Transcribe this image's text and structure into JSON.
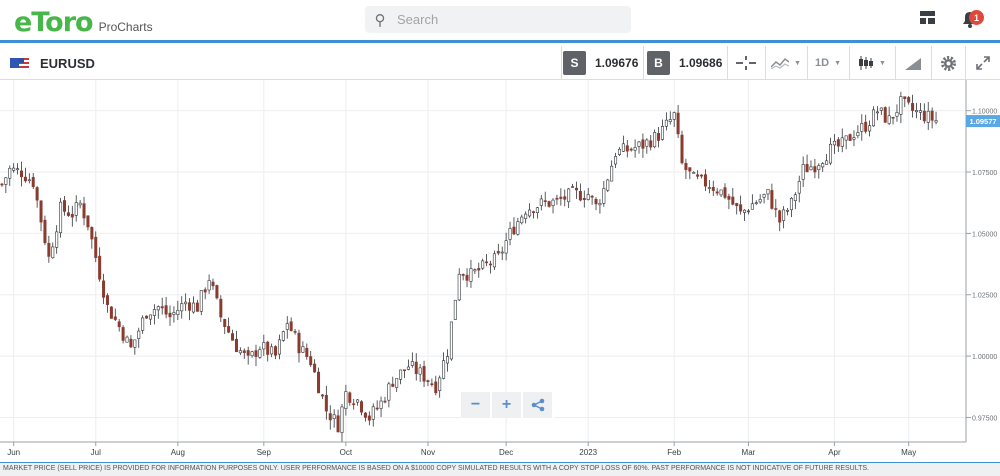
{
  "header": {
    "logo_text": "eToro",
    "logo_sub": "ProCharts",
    "search_placeholder": "Search",
    "notification_count": "1"
  },
  "toolbar": {
    "symbol": "EURUSD",
    "sell_label": "S",
    "sell_price": "1.09676",
    "buy_label": "B",
    "buy_price": "1.09686",
    "timeframe": "1D"
  },
  "colors": {
    "accent": "#3f8fd8",
    "brand": "#48b749",
    "candle": "#2f3437",
    "candle_down": "#8a3b2e",
    "price_tag": "#5aa7e6"
  },
  "zoom": {
    "minus": "−",
    "plus": "+"
  },
  "footer": {
    "disclaimer": "MARKET PRICE (SELL PRICE) IS PROVIDED FOR INFORMATION PURPOSES ONLY. USER PERFORMANCE IS BASED ON A $10000 COPY SIMULATED RESULTS WITH A COPY STOP LOSS OF 60%. PAST PERFORMANCE IS NOT INDICATIVE OF FUTURE RESULTS."
  },
  "chart_data": {
    "type": "candlestick",
    "title": "",
    "xlabel": "",
    "ylabel": "",
    "ylim": [
      0.965,
      1.1125
    ],
    "y_ticks": [
      "1.10000",
      "1.07500",
      "1.05000",
      "1.02500",
      "1.00000",
      "0.97500"
    ],
    "y_tick_values": [
      1.1,
      1.075,
      1.05,
      1.025,
      1.0,
      0.975
    ],
    "x_ticks": [
      "Jun",
      "Jul",
      "Aug",
      "Sep",
      "Oct",
      "Nov",
      "Dec",
      "2023",
      "Feb",
      "Mar",
      "Apr",
      "May"
    ],
    "x_tick_positions": [
      3,
      24,
      45,
      67,
      88,
      109,
      129,
      150,
      172,
      191,
      213,
      232
    ],
    "last_price": "1.09577",
    "last_price_value": 1.09577,
    "grid": true,
    "candle_count": 240,
    "close_series": [
      [
        0,
        1.07
      ],
      [
        2,
        1.076
      ],
      [
        5,
        1.075
      ],
      [
        8,
        1.071
      ],
      [
        12,
        1.04
      ],
      [
        15,
        1.06
      ],
      [
        18,
        1.058
      ],
      [
        20,
        1.062
      ],
      [
        22,
        1.054
      ],
      [
        27,
        1.02
      ],
      [
        30,
        1.012
      ],
      [
        33,
        1.003
      ],
      [
        37,
        1.018
      ],
      [
        40,
        1.02
      ],
      [
        43,
        1.016
      ],
      [
        47,
        1.022
      ],
      [
        50,
        1.02
      ],
      [
        53,
        1.032
      ],
      [
        56,
        1.016
      ],
      [
        60,
        1.004
      ],
      [
        63,
        0.998
      ],
      [
        66,
        1.004
      ],
      [
        70,
        1.0
      ],
      [
        73,
        1.014
      ],
      [
        76,
        1.004
      ],
      [
        79,
        0.998
      ],
      [
        83,
        0.978
      ],
      [
        86,
        0.972
      ],
      [
        88,
        0.985
      ],
      [
        91,
        0.982
      ],
      [
        94,
        0.975
      ],
      [
        97,
        0.981
      ],
      [
        100,
        0.99
      ],
      [
        104,
        0.996
      ],
      [
        107,
        0.993
      ],
      [
        111,
        0.988
      ],
      [
        114,
        1.002
      ],
      [
        117,
        1.035
      ],
      [
        120,
        1.033
      ],
      [
        123,
        1.036
      ],
      [
        127,
        1.04
      ],
      [
        130,
        1.05
      ],
      [
        134,
        1.06
      ],
      [
        138,
        1.062
      ],
      [
        142,
        1.063
      ],
      [
        146,
        1.066
      ],
      [
        150,
        1.066
      ],
      [
        152,
        1.061
      ],
      [
        154,
        1.068
      ],
      [
        157,
        1.083
      ],
      [
        160,
        1.084
      ],
      [
        164,
        1.086
      ],
      [
        168,
        1.09
      ],
      [
        172,
        1.098
      ],
      [
        174,
        1.078
      ],
      [
        177,
        1.072
      ],
      [
        181,
        1.07
      ],
      [
        185,
        1.066
      ],
      [
        189,
        1.058
      ],
      [
        192,
        1.062
      ],
      [
        196,
        1.066
      ],
      [
        199,
        1.055
      ],
      [
        202,
        1.062
      ],
      [
        205,
        1.076
      ],
      [
        208,
        1.078
      ],
      [
        212,
        1.084
      ],
      [
        215,
        1.086
      ],
      [
        218,
        1.091
      ],
      [
        221,
        1.094
      ],
      [
        224,
        1.1
      ],
      [
        227,
        1.096
      ],
      [
        230,
        1.103
      ],
      [
        233,
        1.1
      ],
      [
        236,
        1.098
      ],
      [
        239,
        1.096
      ]
    ]
  }
}
